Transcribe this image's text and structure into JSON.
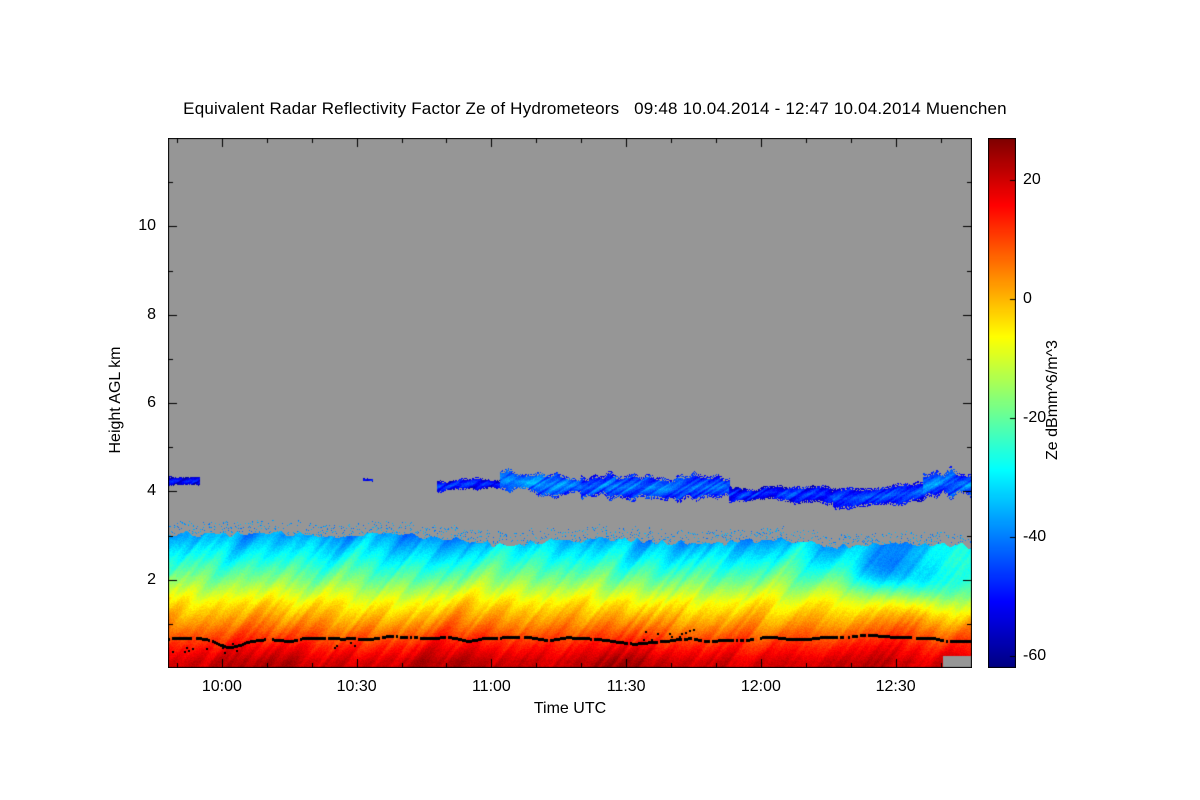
{
  "title": "Equivalent Radar Reflectivity Factor Ze of Hydrometeors   09:48 10.04.2014 - 12:47 10.04.2014 Muenchen",
  "chart_data": {
    "type": "heatmap",
    "title": "Equivalent Radar Reflectivity Factor Ze of Hydrometeors",
    "time_range_label": "09:48 10.04.2014 - 12:47 10.04.2014",
    "station": "Muenchen",
    "xlabel": "Time UTC",
    "ylabel": "Height AGL km",
    "x_axis": {
      "start_label": "09:48",
      "end_label": "12:47",
      "duration_min": 179,
      "ticks": [
        {
          "min": 12,
          "label": "10:00"
        },
        {
          "min": 42,
          "label": "10:30"
        },
        {
          "min": 72,
          "label": "11:00"
        },
        {
          "min": 102,
          "label": "11:30"
        },
        {
          "min": 132,
          "label": "12:00"
        },
        {
          "min": 162,
          "label": "12:30"
        }
      ],
      "minor_tick_every_min": 10,
      "first_minor_min": 2
    },
    "y_axis": {
      "range_km": [
        0,
        12
      ],
      "major_ticks": [
        2,
        4,
        6,
        8,
        10
      ],
      "minor_ticks": [
        1,
        3,
        5,
        7,
        9,
        11
      ]
    },
    "colorbar": {
      "label": "Ze dBmm^6/m^3",
      "range": [
        -62,
        27
      ],
      "ticks": [
        20,
        0,
        -20,
        -40,
        -60
      ]
    },
    "no_data_color": "#969696",
    "surface_layer": {
      "top_km_start": 3.05,
      "top_km_end": 2.75,
      "profile": [
        [
          0.15,
          20
        ],
        [
          0.5,
          14
        ],
        [
          1.0,
          4
        ],
        [
          1.5,
          -5
        ],
        [
          2.0,
          -17
        ],
        [
          2.5,
          -27
        ],
        [
          3.0,
          -36
        ]
      ],
      "intensity_bumps": [
        {
          "center_min": 22,
          "width_min": 8,
          "amp": 3
        },
        {
          "center_min": 63,
          "width_min": 10,
          "amp": 2
        },
        {
          "center_min": 100,
          "width_min": 10,
          "amp": 5
        }
      ]
    },
    "weak_pockets": [
      {
        "center_min": 158,
        "center_km": 2.2,
        "width_min": 8,
        "width_km": 0.5,
        "amp": -10
      },
      {
        "center_min": 170,
        "center_km": 1.9,
        "width_min": 9,
        "width_km": 0.6,
        "amp": -16
      }
    ],
    "elevated_band_segments": [
      {
        "start_min": 0,
        "end_min": 7,
        "center_start_km": 4.25,
        "center_end_km": 4.25,
        "half_km": 0.11,
        "core_dbz": -50
      },
      {
        "start_min": 43.5,
        "end_min": 45.5,
        "center_start_km": 4.3,
        "center_end_km": 4.3,
        "half_km": 0.05,
        "core_dbz": -48
      },
      {
        "start_min": 60,
        "end_min": 74,
        "center_start_km": 4.15,
        "center_end_km": 4.2,
        "half_km": 0.12,
        "core_dbz": -47
      },
      {
        "start_min": 74,
        "end_min": 92,
        "center_start_km": 4.25,
        "center_end_km": 4.15,
        "half_km": 0.24,
        "core_dbz": -37
      },
      {
        "start_min": 92,
        "end_min": 125,
        "center_start_km": 4.1,
        "center_end_km": 4.05,
        "half_km": 0.26,
        "core_dbz": -40
      },
      {
        "start_min": 125,
        "end_min": 148,
        "center_start_km": 4.0,
        "center_end_km": 3.9,
        "half_km": 0.17,
        "core_dbz": -46
      },
      {
        "start_min": 148,
        "end_min": 168,
        "center_start_km": 3.9,
        "center_end_km": 4.0,
        "half_km": 0.22,
        "core_dbz": -44
      },
      {
        "start_min": 168,
        "end_min": 179,
        "center_start_km": 4.1,
        "center_end_km": 4.15,
        "half_km": 0.3,
        "core_dbz": -39
      }
    ],
    "melting_line": {
      "height_km": 0.66,
      "jitter_km": 0.055,
      "skip_prob": 0.12,
      "color": "#000000",
      "dips": [
        {
          "center_min": 14,
          "amp_km": -0.16,
          "width_min": 5
        },
        {
          "center_min": 105,
          "amp_km": -0.1,
          "width_min": 6
        }
      ],
      "scatter_clusters": [
        {
          "start_min": 1,
          "end_min": 16,
          "h_min": 0.3,
          "h_max": 0.55,
          "density": 0.35
        },
        {
          "start_min": 36,
          "end_min": 44,
          "h_min": 0.45,
          "h_max": 0.6,
          "density": 0.3
        },
        {
          "start_min": 104,
          "end_min": 120,
          "h_min": 0.6,
          "h_max": 0.88,
          "density": 0.35
        }
      ]
    },
    "no_data_notch": {
      "start_min": 172.5,
      "max_km": 0.27
    }
  }
}
